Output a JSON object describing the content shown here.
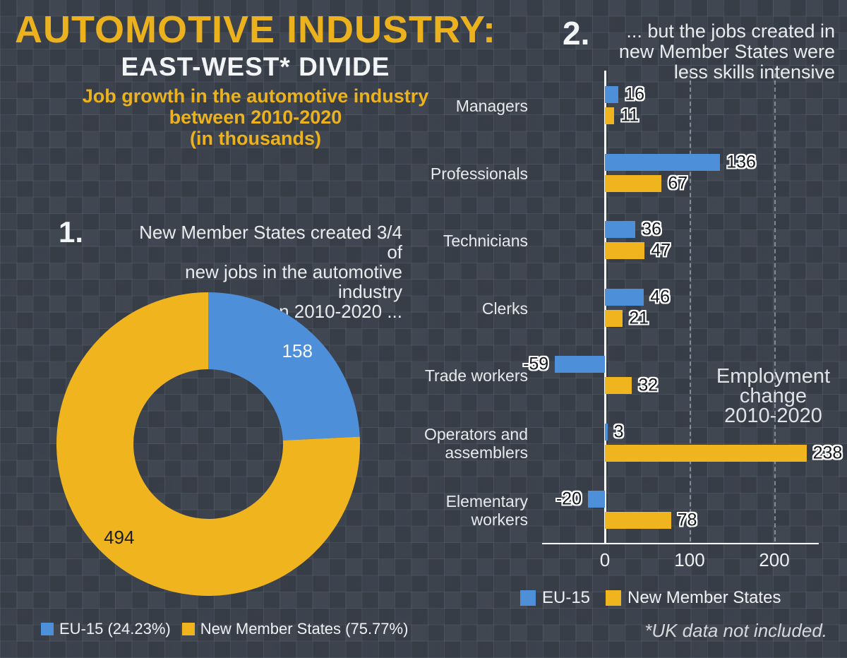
{
  "colors": {
    "blue": "#4D8FD9",
    "yellow": "#F0B41E",
    "background": "#3A404A",
    "text": "#E9ECEF",
    "title_yellow": "#ECB21D"
  },
  "header": {
    "title": "AUTOMOTIVE INDUSTRY:",
    "subtitle": "EAST-WEST* DIVIDE",
    "description_lines": [
      "Job growth in the automotive industry",
      "between 2010-2020",
      "(in thousands)"
    ]
  },
  "section1": {
    "number": "1.",
    "caption_lines": [
      "New Member States created 3/4 of",
      "new jobs in the automotive industry",
      "between 2010-2020 ..."
    ],
    "legend": [
      {
        "label": "EU-15 (24.23%)",
        "color": "#4D8FD9"
      },
      {
        "label": "New Member States (75.77%)",
        "color": "#F0B41E"
      }
    ]
  },
  "section2": {
    "number": "2.",
    "caption_lines": [
      "... but the jobs created in",
      "new Member States were",
      "less skills intensive"
    ],
    "annotation_lines": [
      "Employment",
      "change",
      "2010-2020"
    ],
    "legend": [
      {
        "label": "EU-15",
        "color": "#4D8FD9"
      },
      {
        "label": "New Member States",
        "color": "#F0B41E"
      }
    ]
  },
  "footnote": "*UK data not included.",
  "chart_data": [
    {
      "type": "pie",
      "donut": true,
      "title": "New Member States created 3/4 of new jobs in the automotive industry between 2010-2020",
      "slices": [
        {
          "label": "EU-15",
          "value": 158,
          "pct": 24.23,
          "color": "#4D8FD9",
          "label_color": "#f4f6f8"
        },
        {
          "label": "New Member States",
          "value": 494,
          "pct": 75.77,
          "color": "#F0B41E",
          "label_color": "#1c1e22"
        }
      ]
    },
    {
      "type": "bar",
      "orientation": "horizontal",
      "title": "Employment change 2010-2020",
      "categories": [
        "Managers",
        "Professionals",
        "Technicians",
        "Clerks",
        "Trade workers",
        "Operators and assemblers",
        "Elementary workers"
      ],
      "category_lines": [
        [
          "Managers"
        ],
        [
          "Professionals"
        ],
        [
          "Technicians"
        ],
        [
          "Clerks"
        ],
        [
          "Trade workers"
        ],
        [
          "Operators and",
          "assemblers"
        ],
        [
          "Elementary",
          "workers"
        ]
      ],
      "series": [
        {
          "name": "EU-15",
          "color": "#4D8FD9",
          "values": [
            16,
            136,
            36,
            46,
            -59,
            3,
            -20
          ]
        },
        {
          "name": "New Member States",
          "color": "#F0B41E",
          "values": [
            11,
            67,
            47,
            21,
            32,
            238,
            78
          ]
        }
      ],
      "xticks": [
        0,
        100,
        200
      ],
      "xlim": [
        -75,
        255
      ],
      "grid": "dashed-vertical",
      "legend_position": "bottom"
    }
  ]
}
